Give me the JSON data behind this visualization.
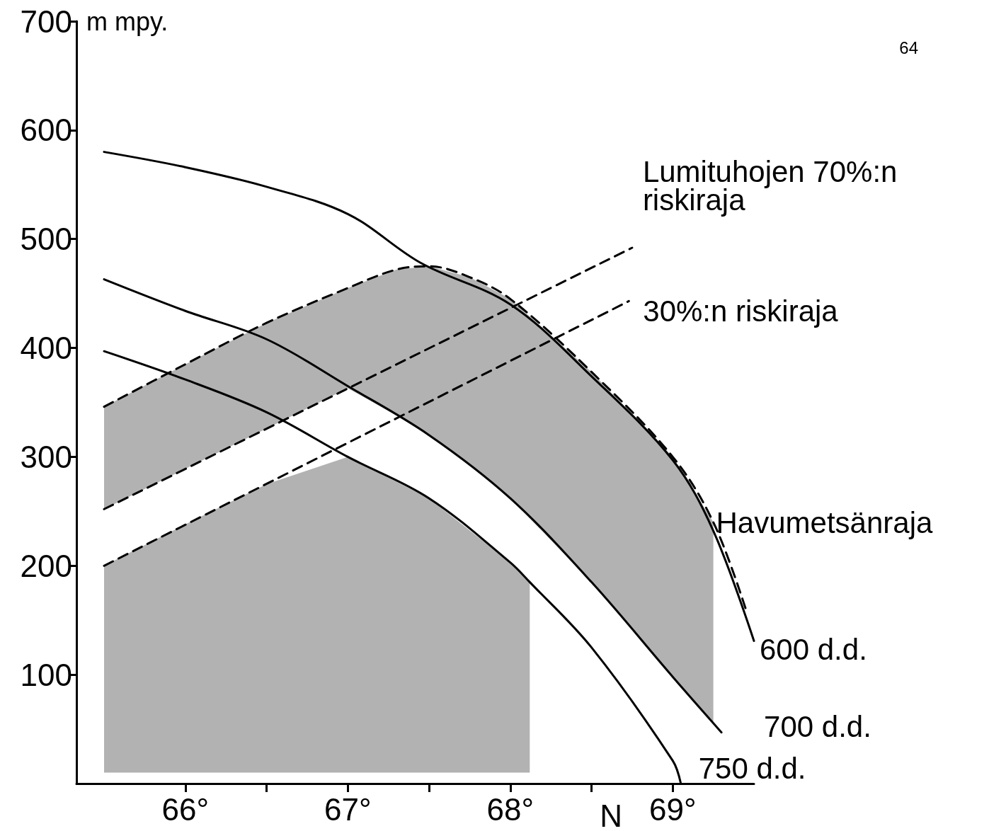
{
  "chart_data": {
    "type": "line",
    "ylabel": "m mpy.",
    "xlabel": "N",
    "xlim": [
      65.33,
      69.5
    ],
    "xticks": [
      {
        "value": 66,
        "label": "66°"
      },
      {
        "value": 66.5,
        "label": null
      },
      {
        "value": 67,
        "label": "67°"
      },
      {
        "value": 67.5,
        "label": null
      },
      {
        "value": 68,
        "label": "68°"
      },
      {
        "value": 68.5,
        "label": null
      },
      {
        "value": 69,
        "label": "69°"
      }
    ],
    "ylim": [
      0,
      700
    ],
    "yticks": [
      100,
      200,
      300,
      400,
      500,
      600,
      700
    ],
    "grid": false,
    "marker": "none",
    "annotations": [
      "64"
    ],
    "series": [
      {
        "name": "600 d.d.",
        "color": "#000000",
        "line_style": "solid",
        "x": [
          65.5,
          66,
          66.5,
          67,
          67.45,
          68,
          68.5,
          69,
          69.25,
          69.5
        ],
        "values": [
          580,
          566,
          548,
          523,
          478,
          440,
          374,
          297,
          232,
          131
        ]
      },
      {
        "name": "700 d.d.",
        "color": "#000000",
        "line_style": "solid",
        "x": [
          65.5,
          66,
          66.5,
          67,
          67.5,
          68,
          68.5,
          69,
          69.3
        ],
        "values": [
          463,
          434,
          408,
          365,
          320,
          262,
          185,
          98,
          47
        ]
      },
      {
        "name": "750 d.d.",
        "color": "#000000",
        "line_style": "solid",
        "x": [
          65.5,
          66,
          66.5,
          67,
          67.5,
          68,
          68.12,
          68.5,
          69,
          69.05
        ],
        "values": [
          397,
          371,
          341,
          300,
          262,
          203,
          185,
          125,
          21,
          0
        ],
        "lower": [
          10,
          10,
          10,
          10,
          10,
          10,
          10,
          null,
          null,
          null
        ],
        "upper": [
          200,
          238,
          275,
          300,
          262,
          203,
          185,
          null,
          null,
          null
        ]
      },
      {
        "name": "Havumetsänraja",
        "color": "#000000",
        "line_style": "dashed",
        "x": [
          65.5,
          66,
          66.5,
          67,
          67.3,
          67.5,
          67.75,
          68,
          68.5,
          69,
          69.25,
          69.45
        ],
        "values": [
          346,
          385,
          423,
          455,
          472,
          475,
          465,
          445,
          378,
          300,
          240,
          160
        ],
        "lower": [
          252,
          289,
          326,
          363,
          338,
          320,
          292,
          262,
          185,
          98,
          56,
          null
        ],
        "upper": [
          346,
          385,
          423,
          455,
          472,
          475,
          465,
          445,
          378,
          300,
          240,
          null
        ]
      },
      {
        "name": "Lumituhojen 70%:n riskiraja",
        "color": "#000000",
        "line_style": "dashed",
        "x": [
          65.5,
          68.75
        ],
        "values": [
          252,
          492
        ]
      },
      {
        "name": "30%:n riskiraja",
        "color": "#000000",
        "line_style": "dashed",
        "x": [
          65.5,
          68.73
        ],
        "values": [
          200,
          443
        ]
      }
    ]
  }
}
